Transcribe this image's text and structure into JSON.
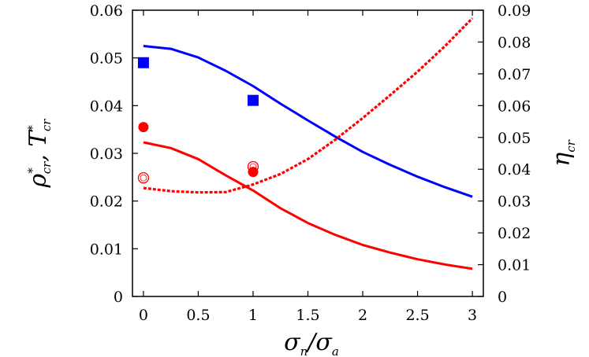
{
  "chart_data": {
    "type": "line",
    "xlabel": {
      "main": "σ",
      "sub1": "n",
      "sep": "/σ",
      "sub2": "a"
    },
    "ylabel_left": {
      "rho": "ρ",
      "rho_sup": "*",
      "rho_sub": "cr",
      "sep": ", ",
      "T": "T",
      "T_sup": "*",
      "T_sub": "cr"
    },
    "ylabel_right": {
      "main": "η",
      "sub": "cr"
    },
    "xlim": [
      -0.1,
      3.1
    ],
    "ylim_left": [
      0,
      0.06
    ],
    "ylim_right": [
      0,
      0.09
    ],
    "x_ticks": [
      {
        "value": 0,
        "label": "0"
      },
      {
        "value": 0.5,
        "label": "0.5"
      },
      {
        "value": 1,
        "label": "1"
      },
      {
        "value": 1.5,
        "label": "1.5"
      },
      {
        "value": 2,
        "label": "2"
      },
      {
        "value": 2.5,
        "label": "2.5"
      },
      {
        "value": 3,
        "label": "3"
      }
    ],
    "y_left_ticks": [
      {
        "value": 0,
        "label": "0"
      },
      {
        "value": 0.01,
        "label": "0.01"
      },
      {
        "value": 0.02,
        "label": "0.02"
      },
      {
        "value": 0.03,
        "label": "0.03"
      },
      {
        "value": 0.04,
        "label": "0.04"
      },
      {
        "value": 0.05,
        "label": "0.05"
      },
      {
        "value": 0.06,
        "label": "0.06"
      }
    ],
    "y_right_ticks": [
      {
        "value": 0,
        "label": "0"
      },
      {
        "value": 0.01,
        "label": "0.01"
      },
      {
        "value": 0.02,
        "label": "0.02"
      },
      {
        "value": 0.03,
        "label": "0.03"
      },
      {
        "value": 0.04,
        "label": "0.04"
      },
      {
        "value": 0.05,
        "label": "0.05"
      },
      {
        "value": 0.06,
        "label": "0.06"
      },
      {
        "value": 0.07,
        "label": "0.07"
      },
      {
        "value": 0.08,
        "label": "0.08"
      },
      {
        "value": 0.09,
        "label": "0.09"
      }
    ],
    "series": [
      {
        "kind": "line",
        "axis": "left",
        "color": "#0000ff",
        "dash": "solid",
        "x": [
          0,
          0.25,
          0.5,
          0.75,
          1.0,
          1.25,
          1.5,
          1.75,
          2.0,
          2.25,
          2.5,
          2.75,
          3.0
        ],
        "y": [
          0.0525,
          0.0519,
          0.0501,
          0.0473,
          0.0441,
          0.0404,
          0.0369,
          0.0335,
          0.0303,
          0.0276,
          0.0251,
          0.0229,
          0.0209
        ]
      },
      {
        "kind": "line",
        "axis": "left",
        "color": "#ff0000",
        "dash": "solid",
        "x": [
          0,
          0.25,
          0.5,
          0.75,
          1.0,
          1.25,
          1.5,
          1.75,
          2.0,
          2.25,
          2.5,
          2.75,
          3.0
        ],
        "y": [
          0.0323,
          0.0311,
          0.0288,
          0.0254,
          0.0222,
          0.0185,
          0.0154,
          0.0129,
          0.0108,
          0.0092,
          0.0078,
          0.0067,
          0.0058
        ]
      },
      {
        "kind": "line",
        "axis": "right",
        "color": "#ff0000",
        "dash": "dotted",
        "x": [
          0,
          0.25,
          0.5,
          0.75,
          1.0,
          1.25,
          1.5,
          1.75,
          2.0,
          2.25,
          2.5,
          2.75,
          3.0
        ],
        "y": [
          0.0341,
          0.0331,
          0.0327,
          0.0328,
          0.0352,
          0.0385,
          0.0432,
          0.0493,
          0.0561,
          0.0633,
          0.0707,
          0.0787,
          0.0875
        ]
      },
      {
        "kind": "marker",
        "axis": "left",
        "marker": "square",
        "color": "#0000ff",
        "filled": true,
        "x": [
          0,
          1
        ],
        "y": [
          0.049,
          0.0411
        ]
      },
      {
        "kind": "marker",
        "axis": "left",
        "marker": "circle",
        "color": "#ff0000",
        "filled": true,
        "x": [
          0,
          1
        ],
        "y": [
          0.0355,
          0.0261
        ]
      },
      {
        "kind": "marker",
        "axis": "right",
        "marker": "circle",
        "color": "#ff0000",
        "filled": false,
        "x": [
          0,
          1
        ],
        "y": [
          0.0373,
          0.0408
        ]
      }
    ]
  }
}
